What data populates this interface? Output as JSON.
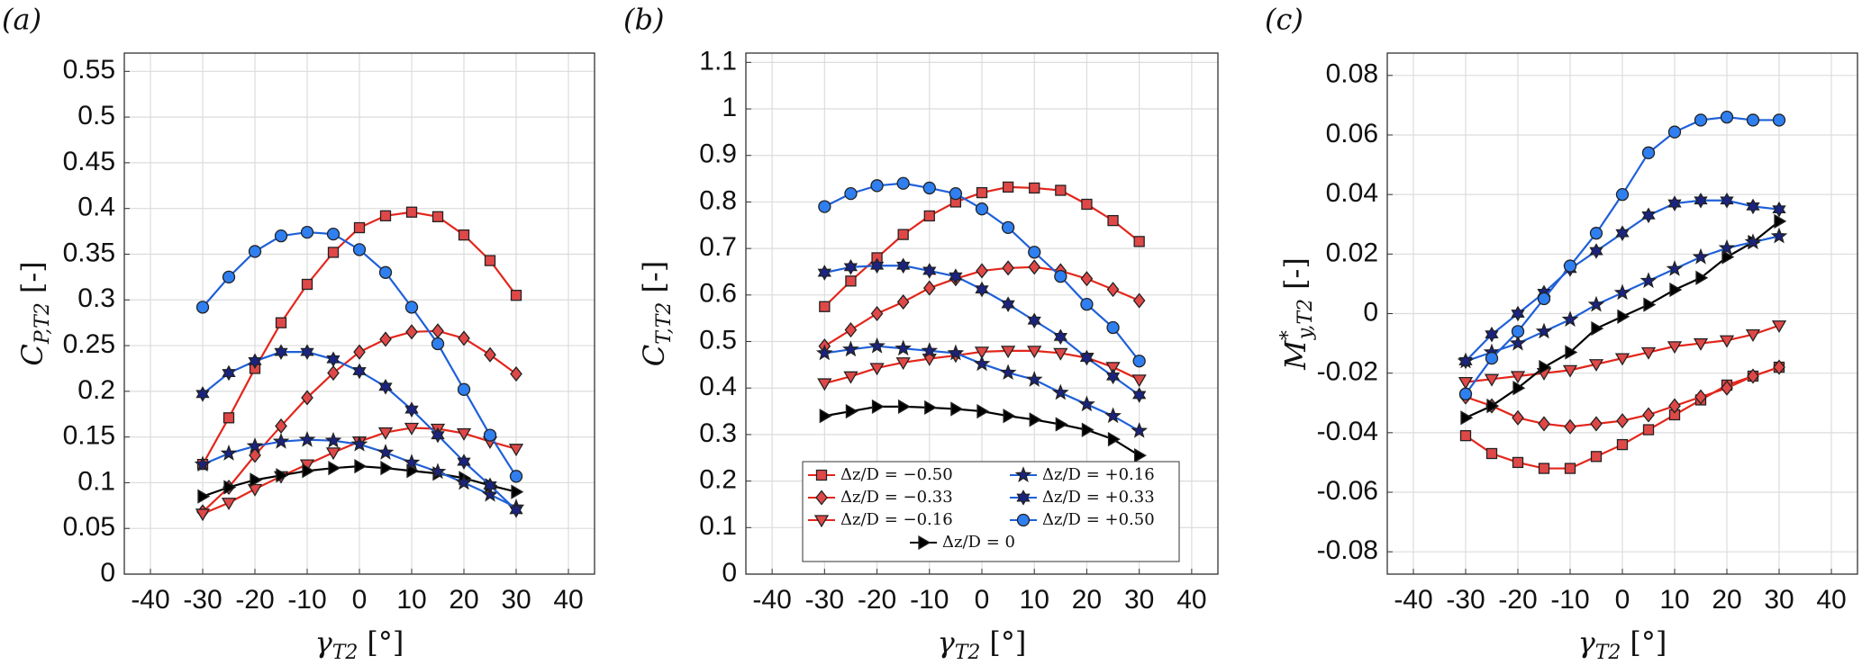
{
  "chart_data": [
    {
      "type": "line",
      "panel_label": "(a)",
      "xlabel": {
        "main": "γ",
        "sub": "T2",
        "unit": "[°]"
      },
      "ylabel": {
        "main": "C",
        "sub": "P,T2",
        "unit": "[-]"
      },
      "x": [
        -30,
        -25,
        -20,
        -15,
        -10,
        -5,
        0,
        5,
        10,
        15,
        20,
        25,
        30
      ],
      "xlim": [
        -45,
        45
      ],
      "xticks": [
        -40,
        -30,
        -20,
        -10,
        0,
        10,
        20,
        30,
        40
      ],
      "ylim": [
        0,
        0.57
      ],
      "yticks": [
        0,
        0.05,
        0.1,
        0.15,
        0.2,
        0.25,
        0.3,
        0.35,
        0.4,
        0.45,
        0.5,
        0.55
      ],
      "grid": true,
      "series": [
        {
          "color": "#e3261b",
          "marker": "square",
          "marker_color": "#e04848",
          "values": [
            0.12,
            0.171,
            0.225,
            0.275,
            0.317,
            0.352,
            0.379,
            0.392,
            0.396,
            0.391,
            0.371,
            0.343,
            0.305
          ]
        },
        {
          "color": "#e3261b",
          "marker": "diamond",
          "marker_color": "#e04848",
          "values": [
            0.068,
            0.095,
            0.13,
            0.162,
            0.193,
            0.22,
            0.243,
            0.257,
            0.265,
            0.266,
            0.258,
            0.24,
            0.219
          ]
        },
        {
          "color": "#e3261b",
          "marker": "triangle-down",
          "marker_color": "#e04848",
          "values": [
            0.066,
            0.078,
            0.093,
            0.107,
            0.12,
            0.133,
            0.145,
            0.155,
            0.16,
            0.159,
            0.154,
            0.145,
            0.137
          ]
        },
        {
          "color": "#000000",
          "marker": "triangle-right",
          "marker_color": "#000000",
          "values": [
            0.085,
            0.095,
            0.103,
            0.108,
            0.113,
            0.116,
            0.118,
            0.116,
            0.113,
            0.11,
            0.105,
            0.097,
            0.09
          ]
        },
        {
          "color": "#1f60d8",
          "marker": "star",
          "marker_color": "#1a237e",
          "values": [
            0.12,
            0.132,
            0.14,
            0.145,
            0.147,
            0.146,
            0.142,
            0.133,
            0.122,
            0.112,
            0.1,
            0.087,
            0.073
          ]
        },
        {
          "color": "#1f60d8",
          "marker": "hexagram",
          "marker_color": "#1a237e",
          "values": [
            0.197,
            0.22,
            0.233,
            0.243,
            0.243,
            0.235,
            0.222,
            0.205,
            0.18,
            0.152,
            0.123,
            0.097,
            0.07
          ]
        },
        {
          "color": "#1f60d8",
          "marker": "circle",
          "marker_color": "#2f7ff0",
          "values": [
            0.292,
            0.325,
            0.353,
            0.37,
            0.374,
            0.372,
            0.355,
            0.33,
            0.292,
            0.252,
            0.202,
            0.152,
            0.107
          ]
        }
      ]
    },
    {
      "type": "line",
      "panel_label": "(b)",
      "xlabel": {
        "main": "γ",
        "sub": "T2",
        "unit": "[°]"
      },
      "ylabel": {
        "main": "C",
        "sub": "T,T2",
        "unit": "[-]"
      },
      "x": [
        -30,
        -25,
        -20,
        -15,
        -10,
        -5,
        0,
        5,
        10,
        15,
        20,
        25,
        30
      ],
      "xlim": [
        -45,
        45
      ],
      "xticks": [
        -40,
        -30,
        -20,
        -10,
        0,
        10,
        20,
        30,
        40
      ],
      "ylim": [
        0,
        1.12
      ],
      "yticks": [
        0,
        0.1,
        0.2,
        0.3,
        0.4,
        0.5,
        0.6,
        0.7,
        0.8,
        0.9,
        1,
        1.1
      ],
      "grid": true,
      "legend": "lower center",
      "series": [
        {
          "name": "Δz/D = −0.50",
          "color": "#e3261b",
          "marker": "square",
          "marker_color": "#e04848",
          "values": [
            0.575,
            0.63,
            0.68,
            0.73,
            0.77,
            0.8,
            0.82,
            0.832,
            0.83,
            0.825,
            0.795,
            0.76,
            0.715
          ]
        },
        {
          "name": "Δz/D = −0.33",
          "color": "#e3261b",
          "marker": "diamond",
          "marker_color": "#e04848",
          "values": [
            0.49,
            0.525,
            0.56,
            0.585,
            0.615,
            0.635,
            0.652,
            0.658,
            0.66,
            0.652,
            0.635,
            0.612,
            0.588
          ]
        },
        {
          "name": "Δz/D = −0.16",
          "color": "#e3261b",
          "marker": "triangle-down",
          "marker_color": "#e04848",
          "values": [
            0.41,
            0.425,
            0.443,
            0.455,
            0.463,
            0.47,
            0.478,
            0.48,
            0.48,
            0.475,
            0.465,
            0.445,
            0.418
          ]
        },
        {
          "name": "Δz/D = +0.16",
          "color": "#1f60d8",
          "marker": "star",
          "marker_color": "#1a237e",
          "values": [
            0.475,
            0.483,
            0.49,
            0.485,
            0.48,
            0.475,
            0.452,
            0.433,
            0.418,
            0.39,
            0.365,
            0.34,
            0.308
          ]
        },
        {
          "name": "Δz/D = +0.33",
          "color": "#1f60d8",
          "marker": "hexagram",
          "marker_color": "#1a237e",
          "values": [
            0.648,
            0.66,
            0.663,
            0.663,
            0.652,
            0.64,
            0.612,
            0.58,
            0.545,
            0.51,
            0.465,
            0.425,
            0.385
          ]
        },
        {
          "name": "Δz/D = +0.50",
          "color": "#1f60d8",
          "marker": "circle",
          "marker_color": "#2f7ff0",
          "values": [
            0.79,
            0.818,
            0.835,
            0.84,
            0.83,
            0.818,
            0.785,
            0.745,
            0.692,
            0.64,
            0.58,
            0.53,
            0.458
          ]
        },
        {
          "name": "Δz/D = 0",
          "color": "#000000",
          "marker": "triangle-right",
          "marker_color": "#000000",
          "values": [
            0.34,
            0.35,
            0.36,
            0.36,
            0.358,
            0.355,
            0.35,
            0.34,
            0.332,
            0.322,
            0.31,
            0.29,
            0.255
          ]
        }
      ]
    },
    {
      "type": "line",
      "panel_label": "(c)",
      "xlabel": {
        "main": "γ",
        "sub": "T2",
        "unit": "[°]"
      },
      "ylabel": {
        "main": "M",
        "sup": "*",
        "sub": "y,T2",
        "unit": "[-]"
      },
      "x": [
        -30,
        -25,
        -20,
        -15,
        -10,
        -5,
        0,
        5,
        10,
        15,
        20,
        25,
        30
      ],
      "xlim": [
        -45,
        45
      ],
      "xticks": [
        -40,
        -30,
        -20,
        -10,
        0,
        10,
        20,
        30,
        40
      ],
      "ylim": [
        -0.0875,
        0.0875
      ],
      "yticks": [
        -0.08,
        -0.06,
        -0.04,
        -0.02,
        0,
        0.02,
        0.04,
        0.06,
        0.08
      ],
      "grid": true,
      "series": [
        {
          "color": "#e3261b",
          "marker": "square",
          "marker_color": "#e04848",
          "values": [
            -0.041,
            -0.047,
            -0.05,
            -0.052,
            -0.052,
            -0.048,
            -0.044,
            -0.039,
            -0.034,
            -0.029,
            -0.024,
            -0.021,
            -0.018
          ]
        },
        {
          "color": "#e3261b",
          "marker": "diamond",
          "marker_color": "#e04848",
          "values": [
            -0.028,
            -0.031,
            -0.035,
            -0.037,
            -0.038,
            -0.037,
            -0.036,
            -0.034,
            -0.031,
            -0.028,
            -0.025,
            -0.021,
            -0.018
          ]
        },
        {
          "color": "#e3261b",
          "marker": "triangle-down",
          "marker_color": "#e04848",
          "values": [
            -0.023,
            -0.022,
            -0.021,
            -0.02,
            -0.019,
            -0.017,
            -0.015,
            -0.013,
            -0.011,
            -0.01,
            -0.009,
            -0.007,
            -0.004
          ]
        },
        {
          "color": "#000000",
          "marker": "triangle-right",
          "marker_color": "#000000",
          "values": [
            -0.035,
            -0.031,
            -0.025,
            -0.018,
            -0.013,
            -0.005,
            -0.001,
            0.003,
            0.008,
            0.012,
            0.019,
            0.024,
            0.031
          ]
        },
        {
          "color": "#1f60d8",
          "marker": "star",
          "marker_color": "#1a237e",
          "values": [
            -0.016,
            -0.013,
            -0.01,
            -0.006,
            -0.002,
            0.003,
            0.007,
            0.011,
            0.015,
            0.019,
            0.022,
            0.024,
            0.026
          ]
        },
        {
          "color": "#1f60d8",
          "marker": "hexagram",
          "marker_color": "#1a237e",
          "values": [
            -0.016,
            -0.007,
            0,
            0.007,
            0.015,
            0.021,
            0.027,
            0.033,
            0.037,
            0.038,
            0.038,
            0.036,
            0.035
          ]
        },
        {
          "color": "#1f60d8",
          "marker": "circle",
          "marker_color": "#2f7ff0",
          "values": [
            -0.027,
            -0.015,
            -0.006,
            0.005,
            0.016,
            0.027,
            0.04,
            0.054,
            0.061,
            0.065,
            0.066,
            0.065,
            0.065
          ]
        }
      ]
    }
  ]
}
